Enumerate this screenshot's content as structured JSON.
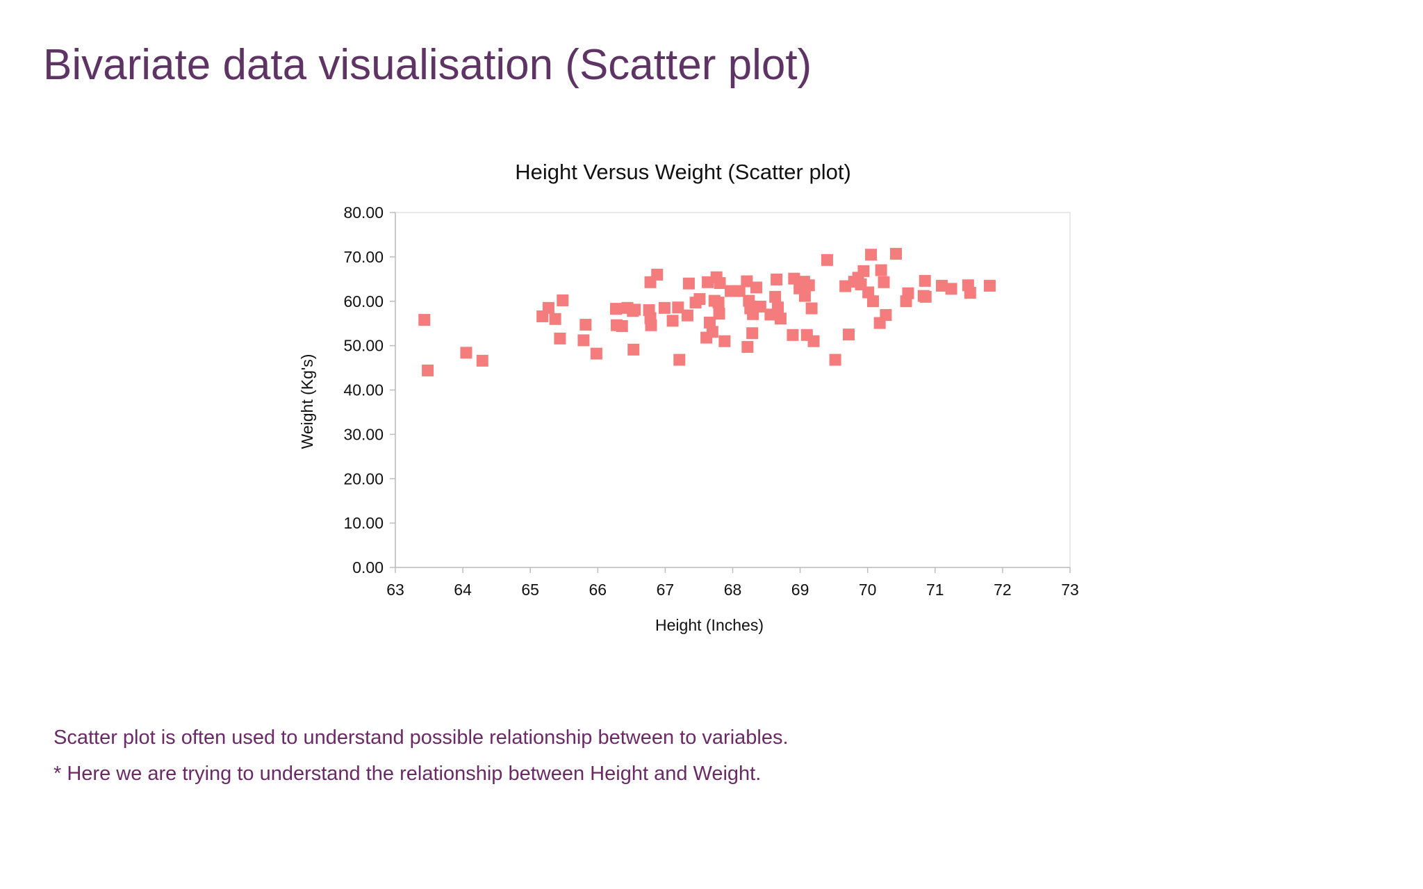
{
  "slide": {
    "title": "Bivariate data visualisation (Scatter plot)",
    "notes": [
      "Scatter plot is often used to understand possible relationship between to variables.",
      "* Here we are trying to understand the relationship between Height and Weight."
    ]
  },
  "chart_data": {
    "type": "scatter",
    "title": "Height Versus Weight (Scatter plot)",
    "xlabel": "Height (Inches)",
    "ylabel": "Weight (Kg's)",
    "xlim": [
      63,
      73
    ],
    "ylim": [
      0,
      80
    ],
    "x_ticks": [
      "63",
      "64",
      "65",
      "66",
      "67",
      "68",
      "69",
      "70",
      "71",
      "72",
      "73"
    ],
    "y_ticks": [
      "0.00",
      "10.00",
      "20.00",
      "30.00",
      "40.00",
      "50.00",
      "60.00",
      "70.00",
      "80.00"
    ],
    "grid": false,
    "marker": "square",
    "marker_color": "#f47c7c",
    "points": [
      [
        63.43,
        55.8
      ],
      [
        63.48,
        44.4
      ],
      [
        64.05,
        48.4
      ],
      [
        64.29,
        46.6
      ],
      [
        65.18,
        56.6
      ],
      [
        65.27,
        58.5
      ],
      [
        65.37,
        56.0
      ],
      [
        65.44,
        51.6
      ],
      [
        65.48,
        60.2
      ],
      [
        65.79,
        51.2
      ],
      [
        65.82,
        54.7
      ],
      [
        65.98,
        48.2
      ],
      [
        66.27,
        58.3
      ],
      [
        66.28,
        54.6
      ],
      [
        66.36,
        54.4
      ],
      [
        66.44,
        58.5
      ],
      [
        66.52,
        57.8
      ],
      [
        66.53,
        49.1
      ],
      [
        66.55,
        58.1
      ],
      [
        66.76,
        58.0
      ],
      [
        66.78,
        64.3
      ],
      [
        66.78,
        56.2
      ],
      [
        66.79,
        54.6
      ],
      [
        66.88,
        66.0
      ],
      [
        66.99,
        58.5
      ],
      [
        67.11,
        55.6
      ],
      [
        67.19,
        58.6
      ],
      [
        67.21,
        46.8
      ],
      [
        67.33,
        56.8
      ],
      [
        67.35,
        64.0
      ],
      [
        67.45,
        59.7
      ],
      [
        67.51,
        60.5
      ],
      [
        67.61,
        51.8
      ],
      [
        67.63,
        64.3
      ],
      [
        67.66,
        55.2
      ],
      [
        67.7,
        53.1
      ],
      [
        67.73,
        60.1
      ],
      [
        67.76,
        65.4
      ],
      [
        67.79,
        59.7
      ],
      [
        67.8,
        57.2
      ],
      [
        67.81,
        64.1
      ],
      [
        67.88,
        51.0
      ],
      [
        67.97,
        62.3
      ],
      [
        68.1,
        62.3
      ],
      [
        68.21,
        64.5
      ],
      [
        68.22,
        49.7
      ],
      [
        68.24,
        60.1
      ],
      [
        68.26,
        58.4
      ],
      [
        68.29,
        52.8
      ],
      [
        68.3,
        57.1
      ],
      [
        68.35,
        63.1
      ],
      [
        68.41,
        58.8
      ],
      [
        68.56,
        57.0
      ],
      [
        68.63,
        61.0
      ],
      [
        68.65,
        64.9
      ],
      [
        68.67,
        58.6
      ],
      [
        68.71,
        56.1
      ],
      [
        68.89,
        52.4
      ],
      [
        68.91,
        65.1
      ],
      [
        68.99,
        62.9
      ],
      [
        69.06,
        64.4
      ],
      [
        69.07,
        61.2
      ],
      [
        69.1,
        52.4
      ],
      [
        69.13,
        63.6
      ],
      [
        69.17,
        58.4
      ],
      [
        69.2,
        51.0
      ],
      [
        69.4,
        69.3
      ],
      [
        69.52,
        46.8
      ],
      [
        69.67,
        63.4
      ],
      [
        69.72,
        52.5
      ],
      [
        69.8,
        64.4
      ],
      [
        69.86,
        65.3
      ],
      [
        69.9,
        63.8
      ],
      [
        69.94,
        66.8
      ],
      [
        70.01,
        62.0
      ],
      [
        70.05,
        70.5
      ],
      [
        70.08,
        60.0
      ],
      [
        70.18,
        55.1
      ],
      [
        70.2,
        67.0
      ],
      [
        70.24,
        64.3
      ],
      [
        70.27,
        56.9
      ],
      [
        70.42,
        70.7
      ],
      [
        70.57,
        60.0
      ],
      [
        70.6,
        61.8
      ],
      [
        70.83,
        61.2
      ],
      [
        70.85,
        64.6
      ],
      [
        70.86,
        61.0
      ],
      [
        71.1,
        63.5
      ],
      [
        71.24,
        62.8
      ],
      [
        71.49,
        63.6
      ],
      [
        71.52,
        61.9
      ],
      [
        71.81,
        63.5
      ]
    ]
  }
}
